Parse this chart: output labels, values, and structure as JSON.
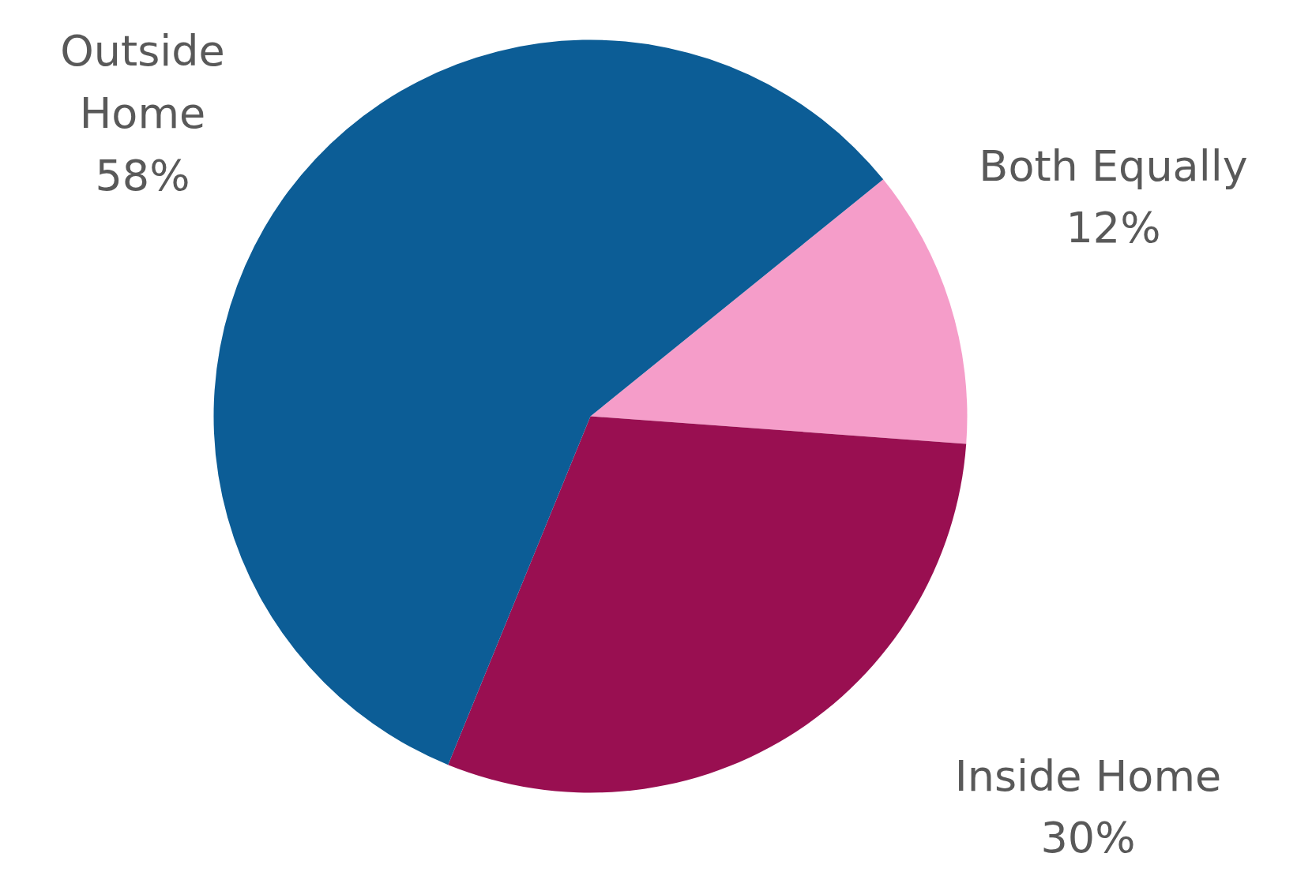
{
  "chart_data": {
    "type": "pie",
    "categories": [
      "Both Equally",
      "Inside Home",
      "Outside Home"
    ],
    "values": [
      12,
      30,
      58
    ],
    "colors": [
      "#f59dc9",
      "#990f51",
      "#0c5d96"
    ],
    "value_labels": [
      "12%",
      "30%",
      "58%"
    ]
  }
}
